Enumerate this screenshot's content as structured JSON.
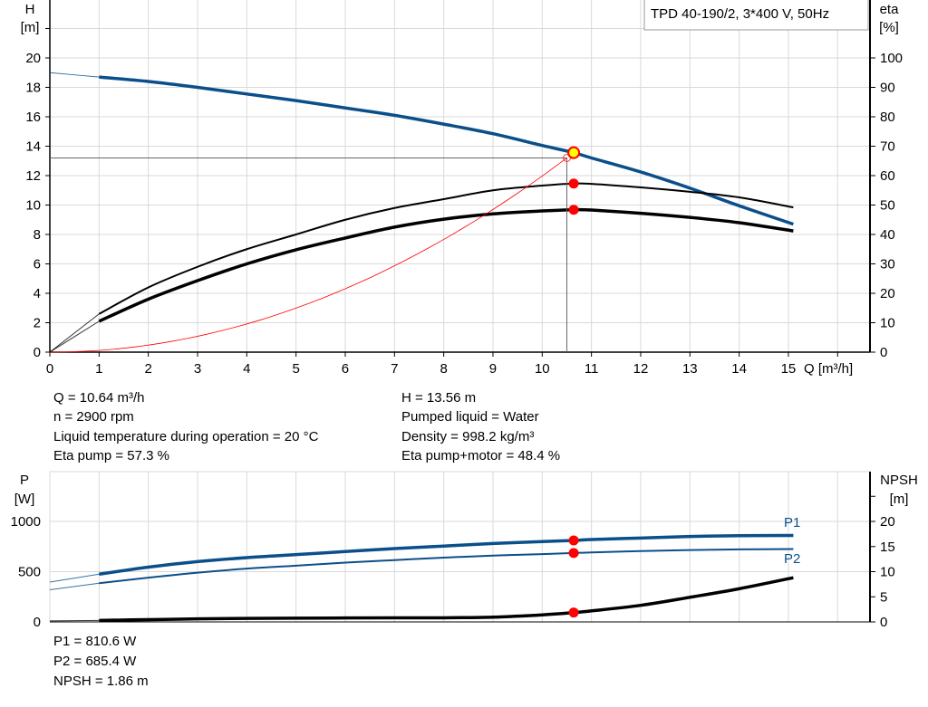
{
  "chart_data": [
    {
      "type": "line",
      "legend_box": "TPD 40-190/2, 3*400 V, 50Hz",
      "xlabel": "Q [m³/h]",
      "ylabel_left": [
        "H",
        "[m]"
      ],
      "ylabel_right": [
        "eta",
        "[%]"
      ],
      "xlim": [
        0,
        16.65
      ],
      "ylim_left": [
        0,
        24
      ],
      "ylim_right": [
        0,
        120
      ],
      "x_ticks": [
        "0",
        "1",
        "2",
        "3",
        "4",
        "5",
        "6",
        "7",
        "8",
        "9",
        "10",
        "11",
        "12",
        "13",
        "14",
        "15"
      ],
      "y_ticks_left": [
        "0",
        "2",
        "4",
        "6",
        "8",
        "10",
        "12",
        "14",
        "16",
        "18",
        "20"
      ],
      "y_ticks_right": [
        "0",
        "10",
        "20",
        "30",
        "40",
        "50",
        "60",
        "70",
        "80",
        "90",
        "100"
      ],
      "grid": true,
      "rated_range": [
        1,
        15.1
      ],
      "series": [
        {
          "id": "head",
          "axis": "left",
          "color": "#0b4f8a",
          "x": [
            0,
            1,
            2,
            3,
            4,
            5,
            6,
            7,
            8,
            9,
            10,
            10.64,
            11,
            12,
            13,
            14,
            15.1
          ],
          "y": [
            19.0,
            18.7,
            18.4,
            18.0,
            17.55,
            17.1,
            16.6,
            16.1,
            15.5,
            14.85,
            14.05,
            13.56,
            13.2,
            12.25,
            11.15,
            9.95,
            8.7
          ]
        },
        {
          "id": "eta-pump",
          "axis": "right",
          "color": "#000000",
          "x": [
            0,
            1,
            2,
            3,
            4,
            5,
            6,
            7,
            8,
            9,
            10,
            10.64,
            11,
            12,
            13,
            14,
            15.1
          ],
          "y": [
            0,
            13,
            22,
            29,
            35,
            40,
            45,
            49,
            52,
            55,
            56.6,
            57.3,
            57.2,
            56,
            54.5,
            52.6,
            49.2
          ]
        },
        {
          "id": "eta-pump-motor",
          "axis": "right",
          "color": "#000000",
          "x": [
            0,
            1,
            2,
            3,
            4,
            5,
            6,
            7,
            8,
            9,
            10,
            10.64,
            11,
            12,
            13,
            14,
            15.1
          ],
          "y": [
            0,
            10.5,
            18,
            24.3,
            30,
            34.8,
            38.8,
            42.5,
            45.2,
            47,
            48,
            48.4,
            48.3,
            47.2,
            45.8,
            44,
            41.2
          ]
        },
        {
          "id": "system-curve",
          "axis": "left",
          "color": "#ff0000",
          "type": "quadratic",
          "x_end": 10.5,
          "y_end": 13.2
        }
      ],
      "operating_point": {
        "q": 10.64,
        "h": 13.56,
        "eta_pump": 57.3,
        "eta_total": 48.4
      },
      "crosshair": {
        "q": 10.5,
        "h": 13.2
      }
    },
    {
      "type": "line",
      "ylabel_left": [
        "P",
        "[W]"
      ],
      "ylabel_right": [
        "NPSH",
        "[m]"
      ],
      "xlim": [
        0,
        16.65
      ],
      "ylim_left": [
        0,
        1400
      ],
      "ylim_right": [
        0,
        28
      ],
      "y_ticks_left": [
        "0",
        "500",
        "1000"
      ],
      "y_ticks_right": [
        "0",
        "5",
        "10",
        "15",
        "20"
      ],
      "grid": true,
      "series": [
        {
          "id": "P1",
          "name": "P1",
          "axis": "left",
          "color": "#0b4f8a",
          "x": [
            0,
            1,
            2,
            3,
            4,
            5,
            6,
            7,
            8,
            9,
            10,
            10.64,
            11,
            12,
            13,
            14,
            15.1
          ],
          "y": [
            396,
            475,
            545,
            600,
            640,
            670,
            700,
            730,
            755,
            780,
            800,
            810.6,
            820,
            835,
            850,
            858,
            860
          ]
        },
        {
          "id": "P2",
          "name": "P2",
          "axis": "left",
          "color": "#0b4f8a",
          "x": [
            0,
            1,
            2,
            3,
            4,
            5,
            6,
            7,
            8,
            9,
            10,
            10.64,
            11,
            12,
            13,
            14,
            15.1
          ],
          "y": [
            320,
            385,
            440,
            490,
            530,
            560,
            590,
            615,
            640,
            660,
            675,
            685.4,
            692,
            705,
            715,
            722,
            725
          ]
        },
        {
          "id": "NPSH",
          "axis": "right",
          "color": "#000000",
          "x": [
            0,
            1,
            2,
            3,
            4,
            5,
            6,
            7,
            8,
            9,
            10,
            10.64,
            11,
            12,
            13,
            14,
            15.1
          ],
          "y": [
            0.2,
            0.3,
            0.45,
            0.6,
            0.7,
            0.75,
            0.78,
            0.8,
            0.82,
            0.95,
            1.4,
            1.86,
            2.2,
            3.3,
            4.9,
            6.6,
            8.8
          ]
        }
      ],
      "operating_point": {
        "p1": 810.6,
        "p2": 685.4,
        "npsh": 1.86
      }
    }
  ],
  "info": {
    "left": [
      "Q = 10.64 m³/h",
      "n = 2900 rpm",
      "Liquid temperature during operation = 20 °C",
      "Eta pump = 57.3 %"
    ],
    "right": [
      "H = 13.56 m",
      "Pumped liquid = Water",
      "Density = 998.2 kg/m³",
      "Eta pump+motor = 48.4 %"
    ],
    "bottom": [
      "P1 = 810.6 W",
      "P2 = 685.4 W",
      "NPSH = 1.86 m"
    ]
  }
}
